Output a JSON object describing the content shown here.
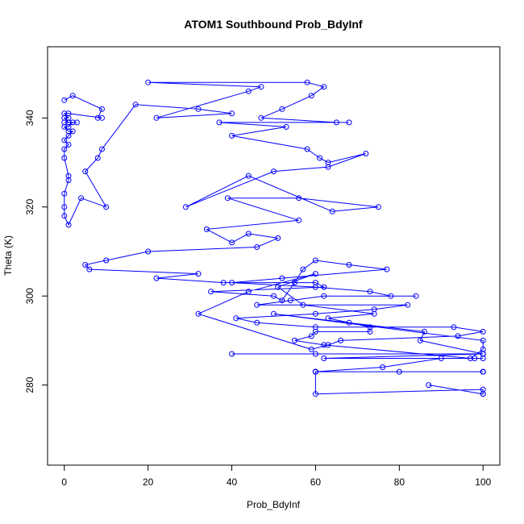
{
  "chart_data": {
    "type": "line",
    "title": "ATOM1 Southbound Prob_BdyInf",
    "xlabel": "Prob_BdyInf",
    "ylabel": "Theta (K)",
    "xlim": [
      -4,
      104
    ],
    "ylim": [
      262,
      356
    ],
    "xticks": [
      0,
      20,
      40,
      60,
      80,
      100
    ],
    "yticks": [
      280,
      300,
      320,
      340
    ],
    "grid": false,
    "legend": "none",
    "color": "#0000ff",
    "marker": "open-circle",
    "series": [
      {
        "x": [
          0,
          2,
          9,
          8,
          9,
          1,
          0,
          1,
          0,
          1,
          3,
          1,
          0,
          1,
          2,
          1,
          0,
          1,
          2,
          1,
          0,
          1,
          0,
          0,
          1,
          1,
          0,
          0,
          0,
          1,
          4,
          10,
          5,
          8,
          9,
          17,
          32,
          40,
          22,
          44,
          47,
          20,
          58,
          62,
          59,
          52,
          47,
          65,
          68,
          37,
          53,
          40,
          58,
          61,
          63,
          72,
          63,
          50,
          29,
          44,
          64,
          75,
          56,
          39,
          56,
          34,
          40,
          44,
          51,
          46,
          20,
          10,
          5,
          6,
          32,
          22,
          38,
          60,
          62,
          35,
          50,
          52,
          55,
          57,
          60,
          68,
          77,
          52,
          40,
          60,
          73,
          78,
          84,
          62,
          54,
          46,
          82,
          74,
          60,
          41,
          46,
          60,
          93,
          100,
          94,
          66,
          63,
          59,
          32,
          44,
          60,
          51,
          57,
          74,
          63,
          68,
          73,
          73,
          60,
          59,
          55,
          62,
          97,
          100,
          100,
          50,
          86,
          85,
          100,
          60,
          100,
          100,
          40,
          100,
          62,
          100,
          98,
          90,
          76,
          60,
          60,
          80,
          100,
          100,
          60,
          100,
          60,
          60,
          100,
          100,
          87,
          100
        ],
        "y": [
          344,
          345,
          342,
          340,
          340,
          341,
          341,
          340,
          340,
          339,
          339,
          339,
          339,
          339,
          339,
          338,
          338,
          337,
          337,
          336,
          335,
          334,
          333,
          331,
          327,
          326,
          323,
          320,
          318,
          316,
          322,
          320,
          328,
          331,
          333,
          343,
          342,
          341,
          340,
          346,
          347,
          348,
          348,
          347,
          345,
          342,
          340,
          339,
          339,
          339,
          338,
          336,
          333,
          331,
          330,
          332,
          329,
          328,
          320,
          327,
          319,
          320,
          322,
          322,
          317,
          315,
          312,
          314,
          313,
          311,
          310,
          308,
          307,
          306,
          305,
          304,
          303,
          303,
          302,
          301,
          300,
          299,
          303,
          306,
          308,
          307,
          306,
          304,
          303,
          302,
          301,
          300,
          300,
          300,
          299,
          298,
          298,
          297,
          296,
          295,
          294,
          293,
          293,
          292,
          291,
          290,
          289,
          288,
          296,
          301,
          305,
          302,
          298,
          296,
          295,
          294,
          293,
          292,
          292,
          291,
          290,
          289,
          286,
          288,
          290,
          296,
          292,
          290,
          287,
          287,
          287,
          287,
          287,
          287,
          286,
          286,
          286,
          286,
          284,
          283,
          283,
          283,
          283,
          283,
          283,
          283,
          283,
          278,
          279,
          278,
          280,
          278
        ]
      }
    ]
  }
}
